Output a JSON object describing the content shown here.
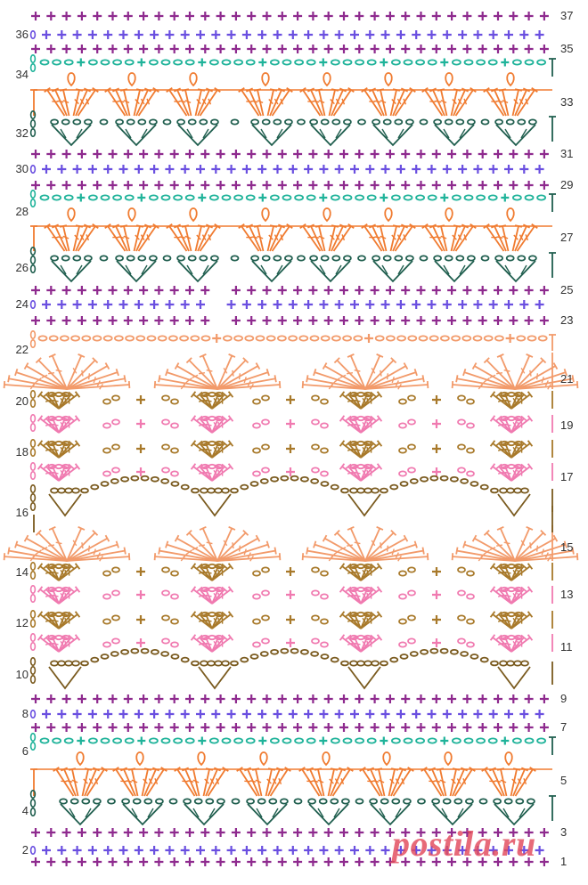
{
  "watermark": "postila.ru",
  "colors": {
    "purple": "#8e2a8e",
    "violet": "#6a4fe0",
    "teal": "#1fb39a",
    "orange": "#f07b30",
    "dark_green": "#1f5e4e",
    "peach": "#f29a6a",
    "brown": "#a8792a",
    "pink": "#f07ab0",
    "dark_brown": "#7a5a1e"
  },
  "rows": [
    {
      "n": "37",
      "side": "right"
    },
    {
      "n": "36",
      "side": "left"
    },
    {
      "n": "35",
      "side": "right"
    },
    {
      "n": "34",
      "side": "left"
    },
    {
      "n": "33",
      "side": "right"
    },
    {
      "n": "32",
      "side": "left"
    },
    {
      "n": "31",
      "side": "right"
    },
    {
      "n": "30",
      "side": "left"
    },
    {
      "n": "29",
      "side": "right"
    },
    {
      "n": "28",
      "side": "left"
    },
    {
      "n": "27",
      "side": "right"
    },
    {
      "n": "26",
      "side": "left"
    },
    {
      "n": "25",
      "side": "right"
    },
    {
      "n": "24",
      "side": "left"
    },
    {
      "n": "23",
      "side": "right"
    },
    {
      "n": "22",
      "side": "left"
    },
    {
      "n": "21",
      "side": "right"
    },
    {
      "n": "20",
      "side": "left"
    },
    {
      "n": "19",
      "side": "right"
    },
    {
      "n": "18",
      "side": "left"
    },
    {
      "n": "17",
      "side": "right"
    },
    {
      "n": "16",
      "side": "left"
    },
    {
      "n": "15",
      "side": "right"
    },
    {
      "n": "14",
      "side": "left"
    },
    {
      "n": "13",
      "side": "right"
    },
    {
      "n": "12",
      "side": "left"
    },
    {
      "n": "11",
      "side": "right"
    },
    {
      "n": "10",
      "side": "left"
    },
    {
      "n": "9",
      "side": "right"
    },
    {
      "n": "8",
      "side": "left"
    },
    {
      "n": "7",
      "side": "right"
    },
    {
      "n": "6",
      "side": "left"
    },
    {
      "n": "5",
      "side": "right"
    },
    {
      "n": "4",
      "side": "left"
    },
    {
      "n": "3",
      "side": "right"
    },
    {
      "n": "2",
      "side": "left"
    },
    {
      "n": "1",
      "side": "right"
    }
  ]
}
